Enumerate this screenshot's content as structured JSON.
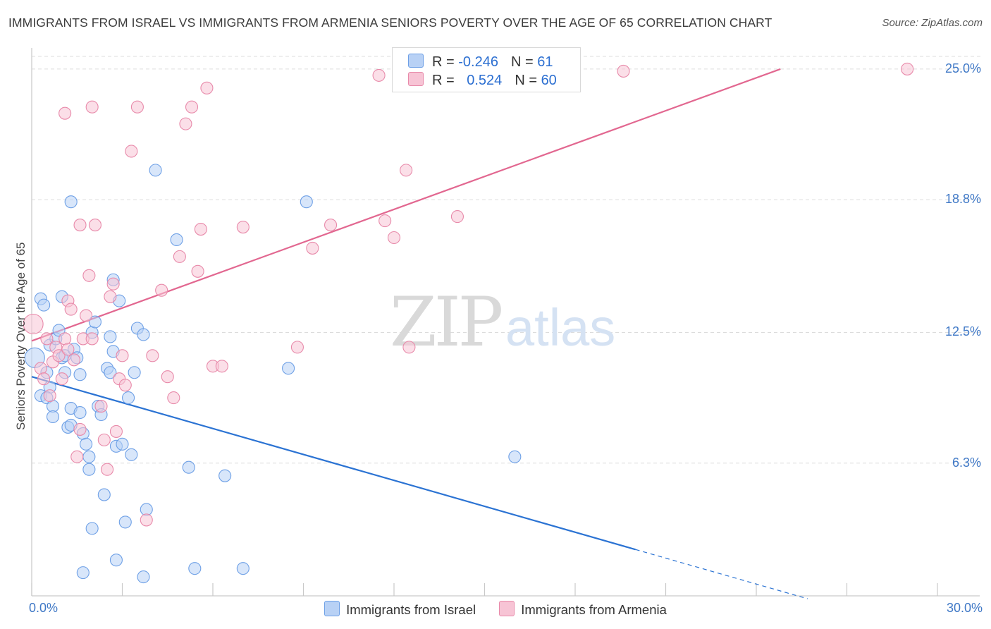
{
  "title": "IMMIGRANTS FROM ISRAEL VS IMMIGRANTS FROM ARMENIA SENIORS POVERTY OVER THE AGE OF 65 CORRELATION CHART",
  "source": "Source: ZipAtlas.com",
  "watermark": {
    "zip": "ZIP",
    "atlas": "atlas"
  },
  "legend": {
    "israel": {
      "r_label": "R = ",
      "r_value": "-0.246",
      "n_label": "N = ",
      "n_value": "61"
    },
    "armenia": {
      "r_label": "R = ",
      "r_value": "0.524",
      "n_label": "N = ",
      "n_value": "60"
    }
  },
  "bottom_legend": {
    "israel": "Immigrants from Israel",
    "armenia": "Immigrants from Armenia"
  },
  "chart_data": {
    "type": "scatter",
    "xlabel": "",
    "ylabel": "Seniors Poverty Over the Age of 65",
    "xlim": [
      0,
      30
    ],
    "ylim": [
      0,
      25.6
    ],
    "x_tick_labels": [
      {
        "value": 0,
        "label": "0.0%"
      },
      {
        "value": 30,
        "label": "30.0%"
      }
    ],
    "y_tick_labels": [
      {
        "value": 6.3,
        "label": "6.3%"
      },
      {
        "value": 12.5,
        "label": "12.5%"
      },
      {
        "value": 18.8,
        "label": "18.8%"
      },
      {
        "value": 25.0,
        "label": "25.0%"
      }
    ],
    "grid": true,
    "colors": {
      "israel": "#6ea0e6",
      "israel_fill": "#b8d1f5",
      "israel_line": "#2b73d3",
      "armenia": "#e88aaa",
      "armenia_fill": "#f7c4d5",
      "armenia_line": "#e26790"
    },
    "series": [
      {
        "name": "Immigrants from Israel",
        "key": "israel",
        "trend": {
          "x0": 0,
          "y0": 10.4,
          "x1": 20.0,
          "y1": 2.2,
          "dash_to_x": 25.7
        },
        "points": [
          [
            0.1,
            11.3
          ],
          [
            0.3,
            9.5
          ],
          [
            0.3,
            14.1
          ],
          [
            0.4,
            13.8
          ],
          [
            0.5,
            10.6
          ],
          [
            0.6,
            9.9
          ],
          [
            0.5,
            9.4
          ],
          [
            0.6,
            11.9
          ],
          [
            0.7,
            9.0
          ],
          [
            0.8,
            12.2
          ],
          [
            0.7,
            8.5
          ],
          [
            0.9,
            12.6
          ],
          [
            1.0,
            11.3
          ],
          [
            1.1,
            11.4
          ],
          [
            1.1,
            10.6
          ],
          [
            1.2,
            8.0
          ],
          [
            1.3,
            8.1
          ],
          [
            1.3,
            8.9
          ],
          [
            1.4,
            11.7
          ],
          [
            1.5,
            11.3
          ],
          [
            1.6,
            8.7
          ],
          [
            1.6,
            10.5
          ],
          [
            1.7,
            7.7
          ],
          [
            1.8,
            7.2
          ],
          [
            1.9,
            6.6
          ],
          [
            1.9,
            6.0
          ],
          [
            2.0,
            12.5
          ],
          [
            2.1,
            13.0
          ],
          [
            2.2,
            9.0
          ],
          [
            2.3,
            8.6
          ],
          [
            2.4,
            4.8
          ],
          [
            2.5,
            10.8
          ],
          [
            2.6,
            10.6
          ],
          [
            2.6,
            12.3
          ],
          [
            2.7,
            11.6
          ],
          [
            2.8,
            7.1
          ],
          [
            2.9,
            14.0
          ],
          [
            3.0,
            7.2
          ],
          [
            3.1,
            3.5
          ],
          [
            3.2,
            9.4
          ],
          [
            3.3,
            6.7
          ],
          [
            3.4,
            10.6
          ],
          [
            3.5,
            12.7
          ],
          [
            3.7,
            12.4
          ],
          [
            3.8,
            4.1
          ],
          [
            4.1,
            20.2
          ],
          [
            4.8,
            16.9
          ],
          [
            5.2,
            6.1
          ],
          [
            6.4,
            5.7
          ],
          [
            8.5,
            10.8
          ],
          [
            9.1,
            18.7
          ],
          [
            1.3,
            18.7
          ],
          [
            2.7,
            15.0
          ],
          [
            1.0,
            14.2
          ],
          [
            2.0,
            3.2
          ],
          [
            1.7,
            1.1
          ],
          [
            2.8,
            1.7
          ],
          [
            3.7,
            0.9
          ],
          [
            5.4,
            1.3
          ],
          [
            7.0,
            1.3
          ],
          [
            16.0,
            6.6
          ]
        ]
      },
      {
        "name": "Immigrants from Armenia",
        "key": "armenia",
        "trend": {
          "x0": 0,
          "y0": 12.1,
          "x1": 24.8,
          "y1": 25.0
        },
        "points": [
          [
            0.05,
            12.9
          ],
          [
            0.3,
            10.8
          ],
          [
            0.4,
            10.3
          ],
          [
            0.5,
            12.2
          ],
          [
            0.6,
            9.5
          ],
          [
            0.7,
            11.1
          ],
          [
            0.8,
            11.8
          ],
          [
            0.9,
            11.4
          ],
          [
            1.0,
            10.3
          ],
          [
            1.1,
            12.2
          ],
          [
            1.2,
            11.7
          ],
          [
            1.2,
            14.0
          ],
          [
            1.3,
            13.6
          ],
          [
            1.4,
            11.2
          ],
          [
            1.5,
            6.6
          ],
          [
            1.6,
            7.9
          ],
          [
            1.7,
            12.2
          ],
          [
            1.8,
            13.3
          ],
          [
            1.9,
            15.2
          ],
          [
            2.0,
            12.2
          ],
          [
            2.1,
            17.6
          ],
          [
            2.3,
            9.0
          ],
          [
            2.4,
            7.4
          ],
          [
            2.5,
            6.0
          ],
          [
            2.6,
            14.2
          ],
          [
            2.7,
            14.8
          ],
          [
            2.8,
            7.8
          ],
          [
            2.9,
            10.3
          ],
          [
            3.0,
            11.4
          ],
          [
            3.1,
            10.0
          ],
          [
            3.3,
            21.1
          ],
          [
            3.5,
            23.2
          ],
          [
            3.8,
            3.6
          ],
          [
            4.0,
            11.4
          ],
          [
            4.3,
            14.5
          ],
          [
            4.5,
            10.4
          ],
          [
            4.7,
            9.4
          ],
          [
            4.9,
            16.1
          ],
          [
            5.1,
            22.4
          ],
          [
            5.3,
            23.2
          ],
          [
            5.5,
            15.4
          ],
          [
            5.6,
            17.4
          ],
          [
            5.8,
            24.1
          ],
          [
            6.0,
            10.9
          ],
          [
            6.3,
            10.9
          ],
          [
            7.0,
            17.5
          ],
          [
            8.8,
            11.8
          ],
          [
            9.3,
            16.5
          ],
          [
            9.9,
            17.6
          ],
          [
            11.5,
            24.7
          ],
          [
            11.7,
            17.8
          ],
          [
            12.0,
            17.0
          ],
          [
            12.4,
            20.2
          ],
          [
            12.5,
            11.8
          ],
          [
            14.1,
            18.0
          ],
          [
            19.6,
            24.9
          ],
          [
            29.0,
            25.0
          ],
          [
            1.1,
            22.9
          ],
          [
            2.0,
            23.2
          ],
          [
            1.6,
            17.6
          ]
        ]
      }
    ]
  }
}
